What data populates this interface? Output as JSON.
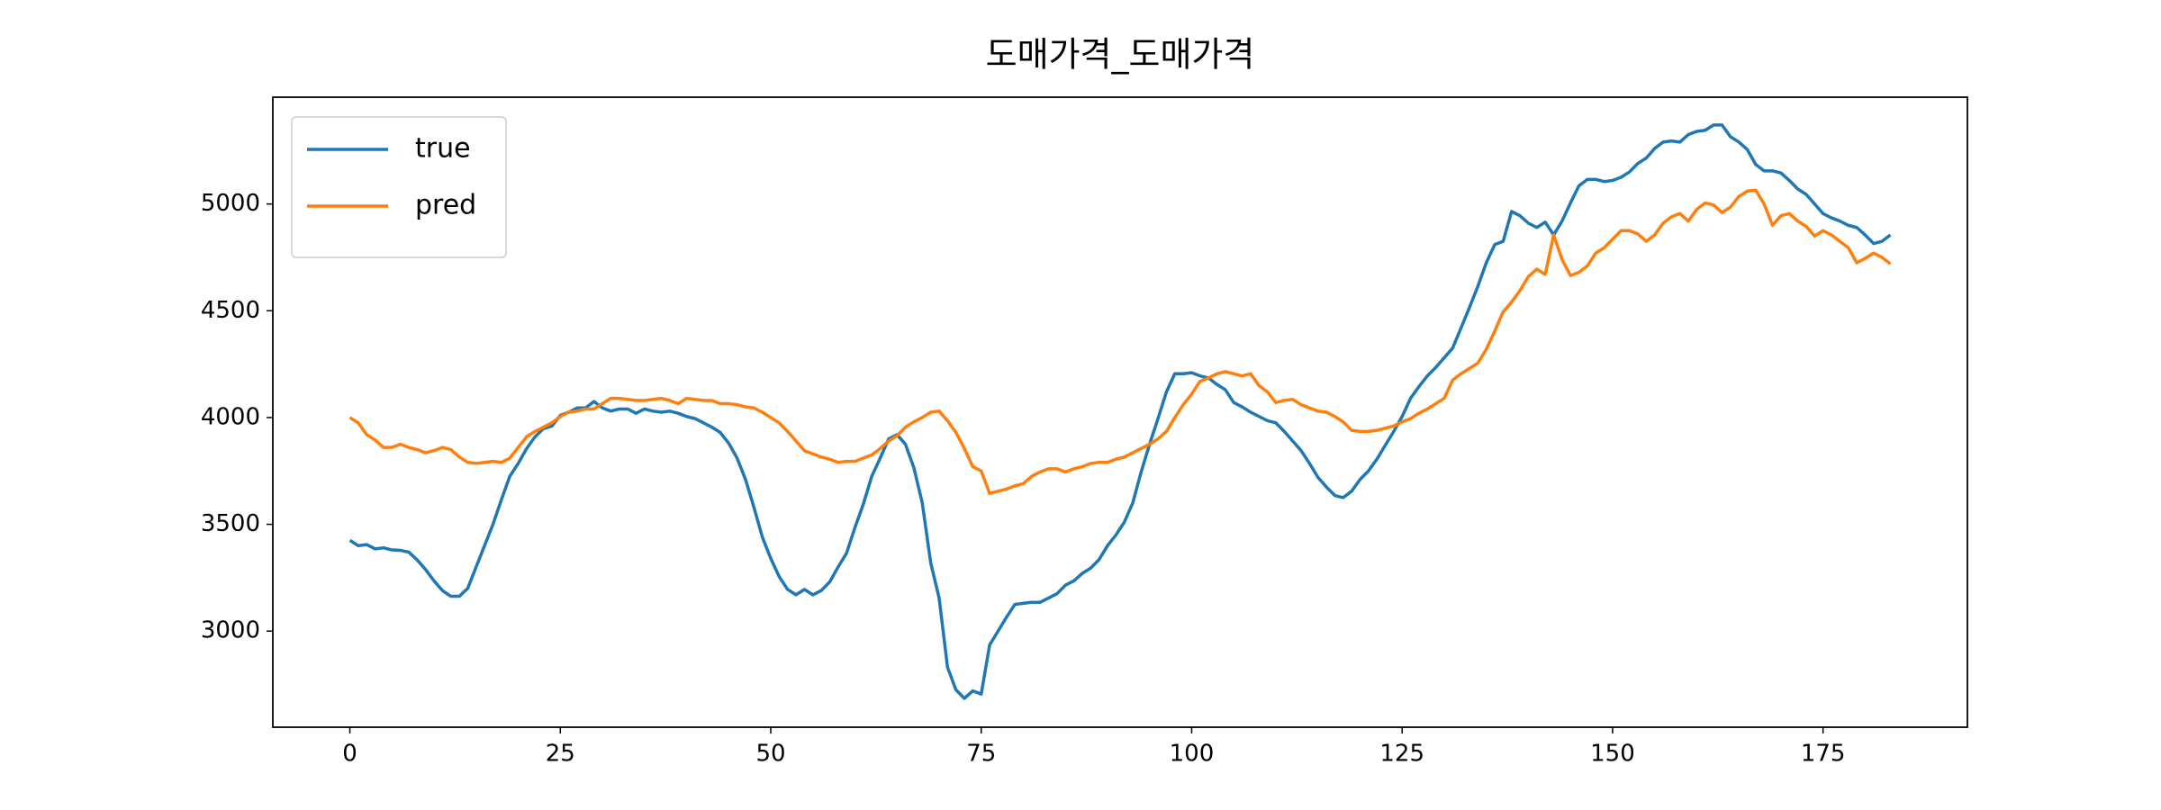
{
  "chart_data": {
    "type": "line",
    "title": "도매가격_도매가격",
    "x": [
      0,
      1,
      2,
      3,
      4,
      5,
      6,
      7,
      8,
      9,
      10,
      11,
      12,
      13,
      14,
      15,
      16,
      17,
      18,
      19,
      20,
      21,
      22,
      23,
      24,
      25,
      26,
      27,
      28,
      29,
      30,
      31,
      32,
      33,
      34,
      35,
      36,
      37,
      38,
      39,
      40,
      41,
      42,
      43,
      44,
      45,
      46,
      47,
      48,
      49,
      50,
      51,
      52,
      53,
      54,
      55,
      56,
      57,
      58,
      59,
      60,
      61,
      62,
      63,
      64,
      65,
      66,
      67,
      68,
      69,
      70,
      71,
      72,
      73,
      74,
      75,
      76,
      77,
      78,
      79,
      80,
      81,
      82,
      83,
      84,
      85,
      86,
      87,
      88,
      89,
      90,
      91,
      92,
      93,
      94,
      95,
      96,
      97,
      98,
      99,
      100,
      101,
      102,
      103,
      104,
      105,
      106,
      107,
      108,
      109,
      110,
      111,
      112,
      113,
      114,
      115,
      116,
      117,
      118,
      119,
      120,
      121,
      122,
      123,
      124,
      125,
      126,
      127,
      128,
      129,
      130,
      131,
      132,
      133,
      134,
      135,
      136,
      137,
      138,
      139,
      140,
      141,
      142,
      143,
      144,
      145,
      146,
      147,
      148,
      149,
      150,
      151,
      152,
      153,
      154,
      155,
      156,
      157,
      158,
      159,
      160,
      161,
      162,
      163,
      164,
      165,
      166,
      167,
      168,
      169,
      170,
      171,
      172,
      173,
      174,
      175,
      176,
      177,
      178,
      179,
      180,
      181,
      182,
      183
    ],
    "series": [
      {
        "name": "true",
        "color": "#1f77b4",
        "values": [
          3425,
          3400,
          3405,
          3385,
          3390,
          3380,
          3378,
          3370,
          3333,
          3288,
          3235,
          3190,
          3163,
          3163,
          3200,
          3300,
          3400,
          3500,
          3615,
          3725,
          3785,
          3855,
          3910,
          3948,
          3960,
          4010,
          4025,
          4045,
          4045,
          4075,
          4045,
          4030,
          4040,
          4040,
          4020,
          4040,
          4030,
          4025,
          4030,
          4020,
          4005,
          3995,
          3975,
          3955,
          3930,
          3880,
          3810,
          3710,
          3580,
          3440,
          3340,
          3255,
          3195,
          3170,
          3195,
          3170,
          3190,
          3230,
          3300,
          3365,
          3485,
          3595,
          3725,
          3810,
          3900,
          3920,
          3875,
          3765,
          3600,
          3320,
          3155,
          2830,
          2725,
          2685,
          2720,
          2705,
          2935,
          3000,
          3065,
          3125,
          3130,
          3135,
          3135,
          3155,
          3175,
          3215,
          3235,
          3270,
          3295,
          3335,
          3400,
          3450,
          3510,
          3600,
          3745,
          3875,
          3995,
          4120,
          4205,
          4205,
          4210,
          4195,
          4185,
          4155,
          4130,
          4070,
          4050,
          4025,
          4005,
          3985,
          3975,
          3935,
          3890,
          3845,
          3785,
          3720,
          3675,
          3635,
          3625,
          3655,
          3710,
          3750,
          3805,
          3870,
          3935,
          4005,
          4090,
          4145,
          4195,
          4235,
          4280,
          4325,
          4420,
          4515,
          4615,
          4725,
          4810,
          4825,
          4965,
          4945,
          4910,
          4890,
          4915,
          4855,
          4920,
          5005,
          5085,
          5115,
          5115,
          5105,
          5110,
          5125,
          5150,
          5190,
          5215,
          5260,
          5290,
          5295,
          5290,
          5325,
          5340,
          5345,
          5370,
          5370,
          5315,
          5290,
          5255,
          5185,
          5155,
          5155,
          5145,
          5110,
          5070,
          5045,
          5000,
          4955,
          4935,
          4920,
          4900,
          4890,
          4855,
          4815,
          4825,
          4855
        ]
      },
      {
        "name": "pred",
        "color": "#ff7f0e",
        "values": [
          4000,
          3975,
          3920,
          3895,
          3860,
          3860,
          3875,
          3860,
          3850,
          3835,
          3845,
          3860,
          3850,
          3815,
          3790,
          3785,
          3790,
          3795,
          3790,
          3810,
          3860,
          3910,
          3935,
          3955,
          3975,
          4005,
          4025,
          4030,
          4040,
          4040,
          4065,
          4090,
          4090,
          4085,
          4080,
          4080,
          4085,
          4090,
          4080,
          4065,
          4090,
          4085,
          4080,
          4080,
          4065,
          4065,
          4060,
          4050,
          4045,
          4025,
          4000,
          3975,
          3935,
          3890,
          3845,
          3830,
          3815,
          3805,
          3790,
          3795,
          3795,
          3810,
          3825,
          3855,
          3890,
          3915,
          3955,
          3980,
          4000,
          4025,
          4030,
          3985,
          3930,
          3855,
          3770,
          3750,
          3645,
          3655,
          3665,
          3680,
          3690,
          3725,
          3745,
          3760,
          3760,
          3745,
          3760,
          3770,
          3785,
          3790,
          3790,
          3805,
          3815,
          3835,
          3855,
          3875,
          3900,
          3935,
          4000,
          4060,
          4110,
          4170,
          4185,
          4205,
          4215,
          4205,
          4195,
          4205,
          4150,
          4120,
          4070,
          4080,
          4085,
          4060,
          4045,
          4030,
          4025,
          4005,
          3980,
          3940,
          3935,
          3935,
          3940,
          3950,
          3960,
          3980,
          3995,
          4020,
          4040,
          4065,
          4090,
          4175,
          4205,
          4230,
          4255,
          4320,
          4405,
          4495,
          4540,
          4595,
          4660,
          4695,
          4670,
          4855,
          4740,
          4665,
          4680,
          4710,
          4770,
          4795,
          4835,
          4875,
          4875,
          4860,
          4825,
          4855,
          4910,
          4940,
          4955,
          4920,
          4975,
          5005,
          4995,
          4960,
          4985,
          5035,
          5060,
          5065,
          5000,
          4900,
          4945,
          4955,
          4920,
          4895,
          4850,
          4875,
          4855,
          4825,
          4795,
          4725,
          4745,
          4770,
          4750,
          4720
        ]
      }
    ],
    "xlim": [
      -9.15,
      192.15
    ],
    "xticks": [
      0,
      25,
      50,
      75,
      100,
      125,
      150,
      175
    ],
    "ylim": [
      2550,
      5500
    ],
    "yticks": [
      3000,
      3500,
      4000,
      4500,
      5000
    ],
    "grid": false,
    "legend": "upper left"
  }
}
